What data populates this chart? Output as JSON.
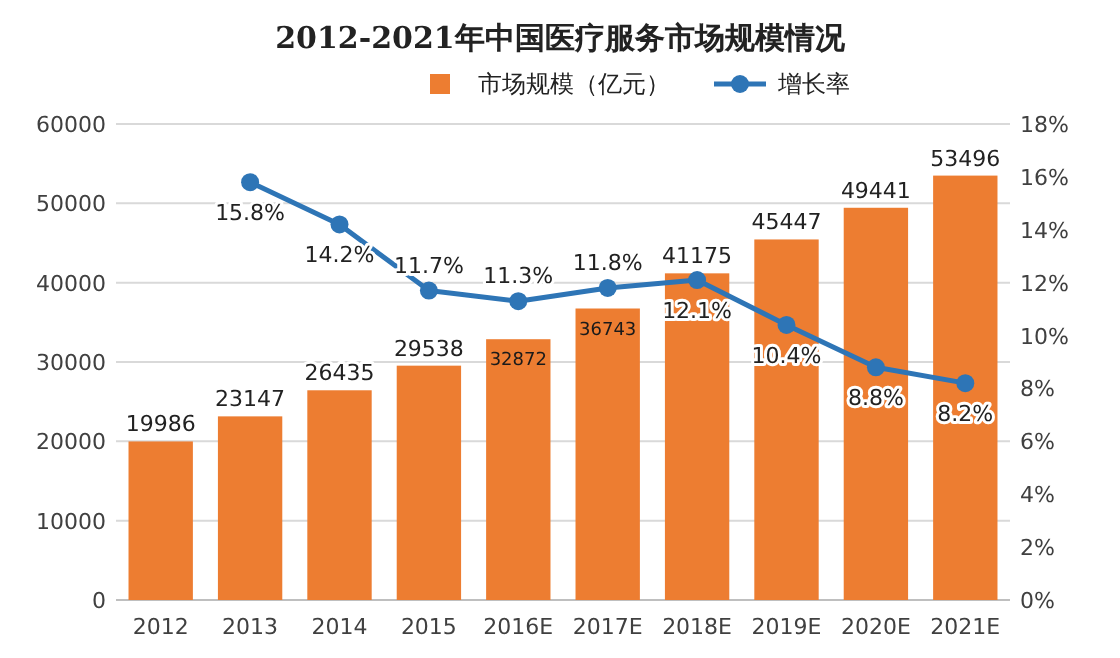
{
  "chart_data": {
    "type": "bar",
    "title": "2012-2021年中国医疗服务市场规模情况",
    "categories": [
      "2012",
      "2013",
      "2014",
      "2015",
      "2016E",
      "2017E",
      "2018E",
      "2019E",
      "2020E",
      "2021E"
    ],
    "series": [
      {
        "name": "市场规模（亿元）",
        "color": "#ed7d31",
        "values": [
          19986,
          23147,
          26435,
          29538,
          32872,
          36743,
          41175,
          45447,
          49441,
          53496
        ],
        "value_labels": [
          "19986",
          "23147",
          "26435",
          "29538",
          "32872",
          "36743",
          "41175",
          "45447",
          "49441",
          "53496"
        ]
      },
      {
        "name": "增长率",
        "type": "line",
        "axis": "y2",
        "color": "#2e75b6",
        "marker": "circle",
        "values": [
          null,
          15.8,
          14.2,
          11.7,
          11.3,
          11.8,
          12.1,
          10.4,
          8.8,
          8.2
        ],
        "value_labels": [
          null,
          "15.8%",
          "14.2%",
          "11.7%",
          "11.3%",
          "11.8%",
          "12.1%",
          "10.4%",
          "8.8%",
          "8.2%"
        ]
      }
    ],
    "ylim": [
      0,
      60000
    ],
    "yticks": [
      0,
      10000,
      20000,
      30000,
      40000,
      50000,
      60000
    ],
    "y2lim": [
      0,
      18
    ],
    "y2ticks": [
      {
        "value": 0,
        "label": "0%"
      },
      {
        "value": 2,
        "label": "2%"
      },
      {
        "value": 4,
        "label": "4%"
      },
      {
        "value": 6,
        "label": "6%"
      },
      {
        "value": 8,
        "label": "8%"
      },
      {
        "value": 10,
        "label": "10%"
      },
      {
        "value": 12,
        "label": "12%"
      },
      {
        "value": 14,
        "label": "14%"
      },
      {
        "value": 16,
        "label": "16%"
      },
      {
        "value": 18,
        "label": "18%"
      }
    ],
    "grid": "y",
    "legend": "top"
  }
}
